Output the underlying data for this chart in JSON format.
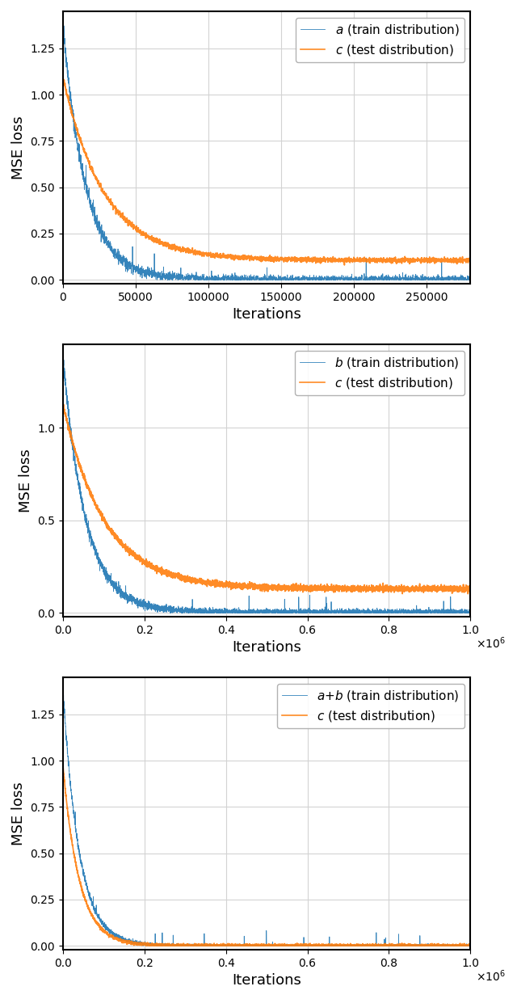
{
  "blue_color": "#1f77b4",
  "orange_color": "#ff7f0e",
  "ylabel": "MSE loss",
  "xlabel": "Iterations",
  "plots": [
    {
      "train_label": "$a$ (train distribution)",
      "test_label": "$c$ (test distribution)",
      "xlim": [
        0,
        280000
      ],
      "ylim": [
        -0.02,
        1.45
      ],
      "xticks": [
        0,
        50000,
        100000,
        150000,
        200000,
        250000
      ],
      "yticks": [
        0.0,
        0.25,
        0.5,
        0.75,
        1.0,
        1.25
      ],
      "n_points": 2800,
      "use_sci": false,
      "train_peak": 1.38,
      "test_peak": 0.97,
      "train_floor": 0.005,
      "test_floor": 0.105,
      "train_decay": 18,
      "test_decay": 10
    },
    {
      "train_label": "$b$ (train distribution)",
      "test_label": "$c$ (test distribution)",
      "xlim": [
        0,
        1000000
      ],
      "ylim": [
        -0.02,
        1.45
      ],
      "xticks": [
        0,
        200000,
        400000,
        600000,
        800000,
        1000000
      ],
      "yticks": [
        0.0,
        0.5,
        1.0
      ],
      "n_points": 5000,
      "use_sci": true,
      "train_peak": 1.38,
      "test_peak": 0.97,
      "train_floor": 0.005,
      "test_floor": 0.13,
      "train_decay": 18,
      "test_decay": 10
    },
    {
      "train_label": "$a$+$b$ (train distribution)",
      "test_label": "$c$ (test distribution)",
      "xlim": [
        0,
        1000000
      ],
      "ylim": [
        -0.02,
        1.45
      ],
      "xticks": [
        0,
        200000,
        400000,
        600000,
        800000,
        1000000
      ],
      "yticks": [
        0.0,
        0.25,
        0.5,
        0.75,
        1.0,
        1.25
      ],
      "n_points": 5000,
      "use_sci": true,
      "train_peak": 1.38,
      "test_peak": 0.97,
      "train_floor": 0.002,
      "test_floor": 0.002,
      "train_decay": 25,
      "test_decay": 25
    }
  ]
}
